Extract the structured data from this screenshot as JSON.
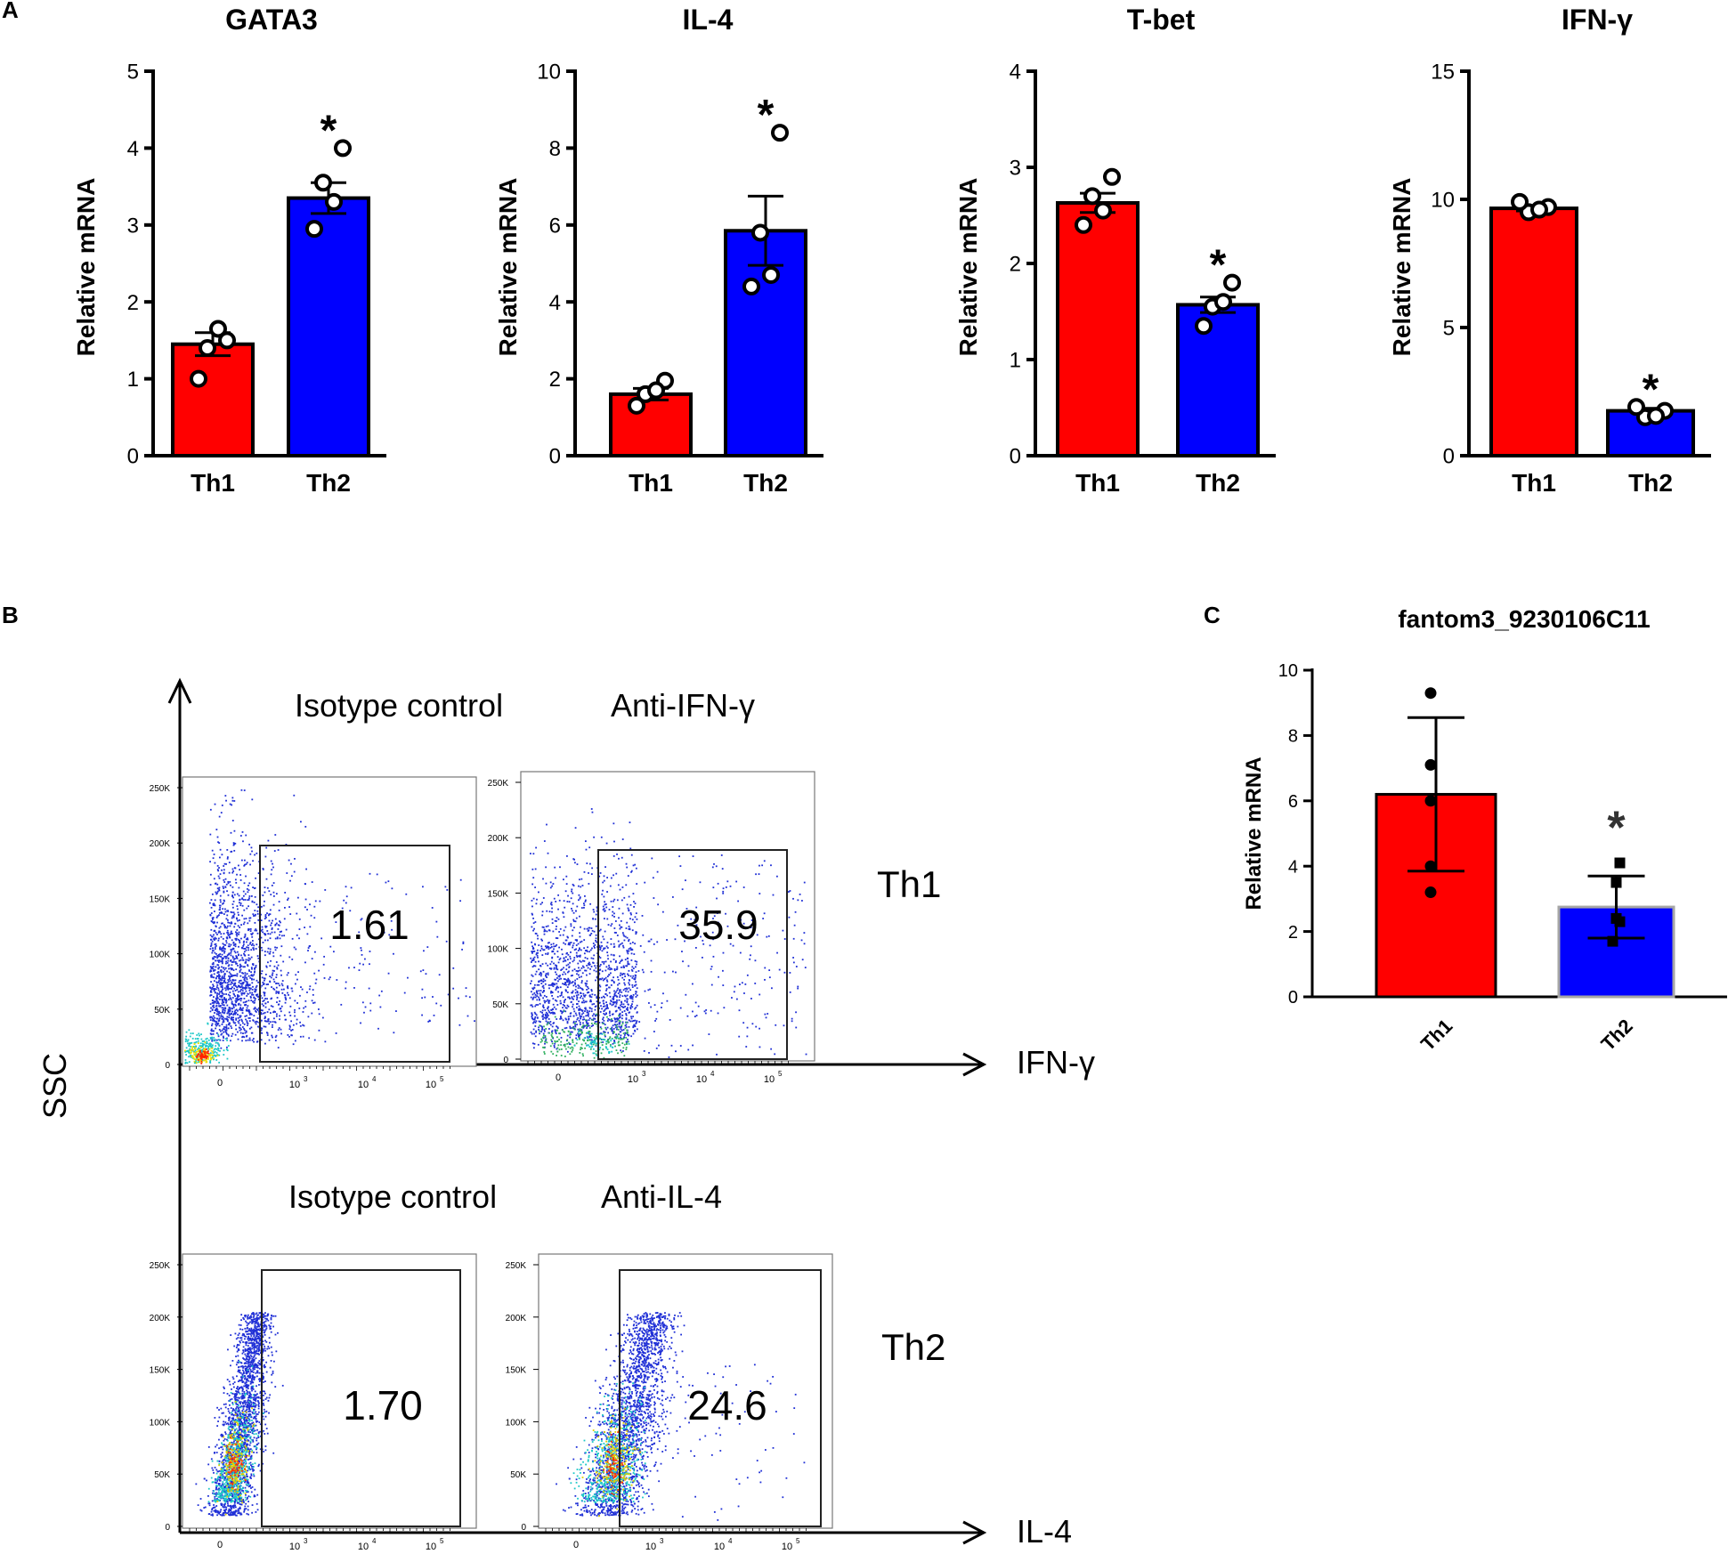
{
  "panels": {
    "a": "A",
    "b": "B",
    "c": "C"
  },
  "colors": {
    "th1": "#ff0000",
    "th2": "#0000ff",
    "axis": "#000000",
    "th2_outline_c": "#a6a6a6"
  },
  "chart_data": [
    {
      "id": "gata3",
      "type": "bar",
      "title": "GATA3",
      "ylabel": "Relative mRNA",
      "ylim": [
        0,
        5
      ],
      "yticks": [
        "0",
        "1",
        "2",
        "3",
        "4",
        "5"
      ],
      "categories": [
        "Th1",
        "Th2"
      ],
      "values": [
        1.45,
        3.35
      ],
      "errors": [
        0.15,
        0.2
      ],
      "points": [
        [
          1.5,
          1.4,
          1.65,
          1.0
        ],
        [
          4.0,
          3.55,
          3.3,
          2.95
        ]
      ],
      "significance": "*",
      "sig_over": 1
    },
    {
      "id": "il4",
      "type": "bar",
      "title": "IL-4",
      "ylabel": "Relative mRNA",
      "ylim": [
        0,
        10
      ],
      "yticks": [
        "0",
        "2",
        "4",
        "6",
        "8",
        "10"
      ],
      "categories": [
        "Th1",
        "Th2"
      ],
      "values": [
        1.6,
        5.85
      ],
      "errors": [
        0.15,
        0.9
      ],
      "points": [
        [
          1.95,
          1.6,
          1.7,
          1.3
        ],
        [
          8.4,
          5.8,
          4.7,
          4.4
        ]
      ],
      "significance": "*",
      "sig_over": 1
    },
    {
      "id": "tbet",
      "type": "bar",
      "title": "T-bet",
      "ylabel": "Relative mRNA",
      "ylim": [
        0,
        4
      ],
      "yticks": [
        "0",
        "1",
        "2",
        "3",
        "4"
      ],
      "categories": [
        "Th1",
        "Th2"
      ],
      "values": [
        2.63,
        1.57
      ],
      "errors": [
        0.1,
        0.08
      ],
      "points": [
        [
          2.9,
          2.7,
          2.55,
          2.4
        ],
        [
          1.8,
          1.55,
          1.6,
          1.35
        ]
      ],
      "significance": "*",
      "sig_over": 1
    },
    {
      "id": "ifng",
      "type": "bar",
      "title": "IFN-γ",
      "ylabel": "Relative mRNA",
      "ylim": [
        0,
        15
      ],
      "yticks": [
        "0",
        "5",
        "10",
        "15"
      ],
      "categories": [
        "Th1",
        "Th2"
      ],
      "values": [
        9.65,
        1.75
      ],
      "errors": [
        0.1,
        0.1
      ],
      "points": [
        [
          9.7,
          9.5,
          9.6,
          9.9
        ],
        [
          1.75,
          1.5,
          1.55,
          1.9
        ]
      ],
      "significance": "*",
      "sig_over": 1
    },
    {
      "id": "fantom3",
      "type": "bar",
      "title": "fantom3_9230106C11",
      "ylabel": "Relative mRNA",
      "ylim": [
        0,
        10
      ],
      "yticks": [
        "0",
        "2",
        "4",
        "6",
        "8",
        "10"
      ],
      "categories": [
        "Th1",
        "Th2"
      ],
      "values": [
        6.2,
        2.75
      ],
      "errors": [
        2.35,
        0.95
      ],
      "points": [
        [
          9.3,
          7.1,
          6.0,
          4.0,
          3.2
        ],
        [
          4.1,
          3.5,
          2.4,
          2.3,
          1.7
        ]
      ],
      "significance": "*",
      "sig_over": 1
    }
  ],
  "flow": {
    "ylabel": "SSC",
    "xlabels": [
      "IFN-γ",
      "IL-4"
    ],
    "y_ticks": [
      "250K",
      "200K",
      "150K",
      "100K",
      "50K",
      "0"
    ],
    "x_ticks": [
      "0",
      "10",
      "3",
      "10",
      "4",
      "10",
      "5"
    ],
    "rows": [
      {
        "row_label": "Th1",
        "plots": [
          {
            "label": "Isotype control",
            "value": "1.61"
          },
          {
            "label": "Anti-IFN-γ",
            "value": "35.9"
          }
        ]
      },
      {
        "row_label": "Th2",
        "plots": [
          {
            "label": "Isotype control",
            "value": "1.70"
          },
          {
            "label": "Anti-IL-4",
            "value": "24.6"
          }
        ]
      }
    ]
  }
}
